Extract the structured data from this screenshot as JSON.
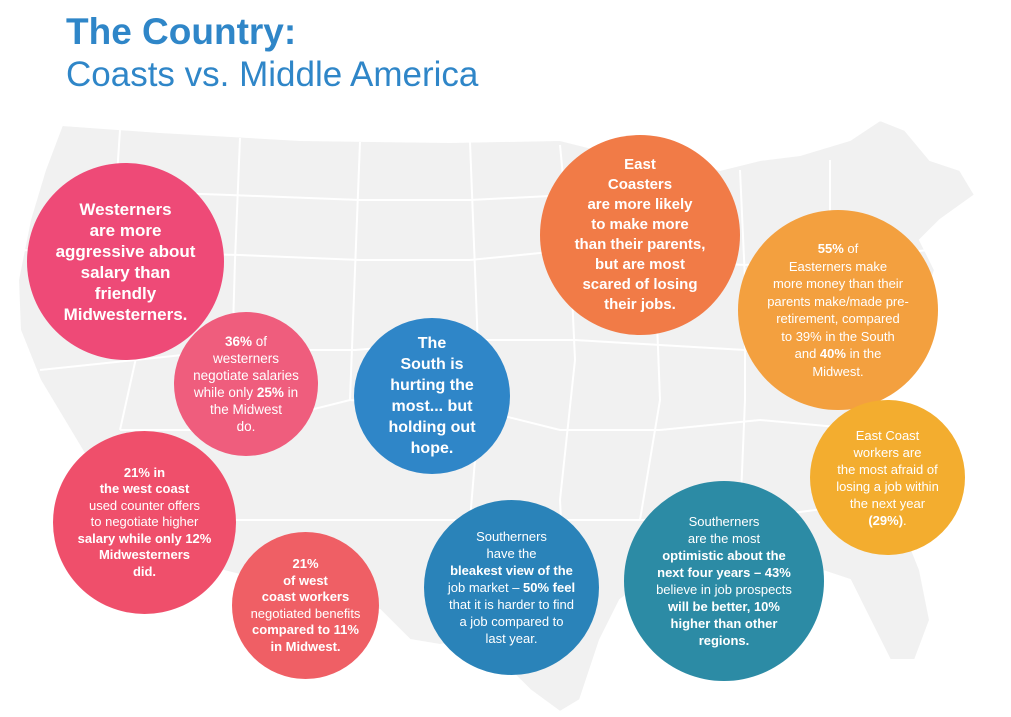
{
  "header": {
    "title_bold": "The Country:",
    "title_sub": "Coasts vs. Middle America"
  },
  "bubbles": {
    "westerners_aggressive": {
      "lines": [
        "Westerners",
        "are more",
        "aggressive about",
        "salary than friendly",
        "Midwesterners."
      ]
    },
    "west_negotiate": {
      "l1_bold": "36%",
      "l1_rest": " of",
      "l2": "westerners",
      "l3": "negotiate salaries",
      "l4_pre": "while only ",
      "l4_bold": "25%",
      "l4_post": " in",
      "l5": "the Midwest",
      "l6": "do."
    },
    "west_counter_offers": {
      "l1_bold": "21%",
      "l1_rest": " in",
      "l2": "the west coast",
      "l3": "used counter offers",
      "l4": "to negotiate higher",
      "l5": "salary while only 12%",
      "l6": "Midwesterners",
      "l7": "did."
    },
    "west_benefits": {
      "l1_bold": "21%",
      "l2": "of west",
      "l3": "coast workers",
      "l4": "negotiated benefits",
      "l5": "compared to 11%",
      "l6": "in Midwest."
    },
    "south_hurting": {
      "lines": [
        "The",
        "South is",
        "hurting the",
        "most... but",
        "holding out",
        "hope."
      ]
    },
    "south_bleakest": {
      "l1": "Southerners",
      "l2": "have the",
      "l3": "bleakest view of the",
      "l4_pre": "job market – ",
      "l4_bold": "50% feel",
      "l5": "that it is harder to find",
      "l6": "a job compared to",
      "l7": "last year."
    },
    "south_optimistic": {
      "lines": [
        "Southerners",
        "are the most",
        "optimistic about the",
        "next four years – 43%",
        "believe in job prospects",
        "will be better, 10%",
        "higher than other",
        "regions."
      ]
    },
    "east_coasters": {
      "lines": [
        "East",
        "Coasters",
        "are more likely",
        "to make more",
        "than their parents,",
        "but are most",
        "scared of losing",
        "their jobs."
      ]
    },
    "easterners_money": {
      "l1_bold": "55%",
      "l1_rest": " of",
      "l2": "Easterners make",
      "l3": "more money than their",
      "l4": "parents make/made pre-",
      "l5": "retirement, compared",
      "l6": "to 39% in the South",
      "l7_pre": "and ",
      "l7_bold": "40%",
      "l7_post": " in the",
      "l8": "Midwest."
    },
    "east_afraid": {
      "l1": "East Coast",
      "l2": "workers are",
      "l3": "the most afraid of",
      "l4": "losing a job within",
      "l5": "the next year",
      "l6_bold": "(29%)",
      "l6_post": "."
    }
  },
  "colors": {
    "title_blue": "#2f86c8",
    "map_gray": "#f2f2f2",
    "pink": "#ee4a77",
    "blue": "#2f86c8",
    "orange": "#f17b47",
    "amber": "#f3a03f",
    "teal": "#2c8ba5"
  }
}
